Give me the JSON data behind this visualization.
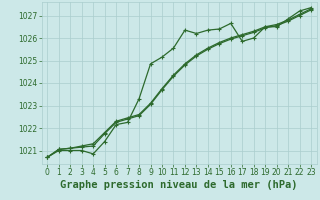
{
  "title": "Graphe pression niveau de la mer (hPa)",
  "background_color": "#cce8e8",
  "plot_bg_color": "#cce8e8",
  "line_color": "#2d6a2d",
  "grid_color": "#aacece",
  "xlim": [
    -0.5,
    23.5
  ],
  "ylim": [
    1020.4,
    1027.6
  ],
  "yticks": [
    1021,
    1022,
    1023,
    1024,
    1025,
    1026,
    1027
  ],
  "xticks": [
    0,
    1,
    2,
    3,
    4,
    5,
    6,
    7,
    8,
    9,
    10,
    11,
    12,
    13,
    14,
    15,
    16,
    17,
    18,
    19,
    20,
    21,
    22,
    23
  ],
  "series": [
    [
      1020.7,
      1021.0,
      1021.0,
      1021.0,
      1020.85,
      1021.4,
      1022.15,
      1022.25,
      1023.3,
      1024.85,
      1025.15,
      1025.55,
      1026.35,
      1026.2,
      1026.35,
      1026.4,
      1026.65,
      1025.85,
      1026.0,
      1026.5,
      1026.5,
      1026.85,
      1027.2,
      1027.35
    ],
    [
      1020.7,
      1021.05,
      1021.1,
      1021.2,
      1021.3,
      1021.8,
      1022.3,
      1022.45,
      1022.6,
      1023.1,
      1023.75,
      1024.35,
      1024.85,
      1025.25,
      1025.55,
      1025.8,
      1026.0,
      1026.15,
      1026.3,
      1026.5,
      1026.6,
      1026.8,
      1027.05,
      1027.3
    ],
    [
      1020.7,
      1021.05,
      1021.1,
      1021.15,
      1021.2,
      1021.75,
      1022.25,
      1022.4,
      1022.55,
      1023.05,
      1023.7,
      1024.3,
      1024.8,
      1025.2,
      1025.5,
      1025.75,
      1025.95,
      1026.1,
      1026.25,
      1026.45,
      1026.55,
      1026.75,
      1027.0,
      1027.25
    ]
  ],
  "marker": "+",
  "marker_size": 3.5,
  "line_width": 0.9,
  "tick_fontsize": 5.5,
  "title_fontsize": 7.5
}
